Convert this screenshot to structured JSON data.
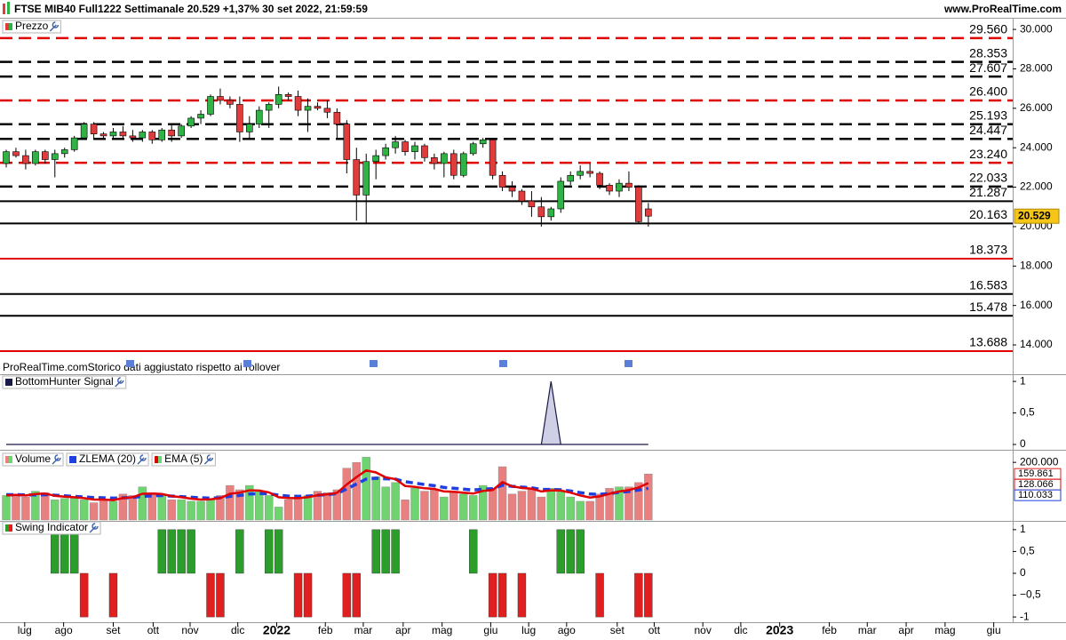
{
  "header": {
    "title": "FTSE MIB40 Full1222 Settimanale 20.529 +1,37% 30 set 2022, 21:59:59",
    "site": "www.ProRealTime.com"
  },
  "chart_data": [
    {
      "type": "candlestick",
      "title": "Prezzo",
      "note": "ProRealTime.com",
      "subtitle": "Storico dati aggiustato rispetto ai rollover",
      "up_color": "#2fb344",
      "down_color": "#e23b3b",
      "open": [
        23200,
        23800,
        23600,
        23200,
        23800,
        23400,
        23700,
        23900,
        24500,
        25200,
        24700,
        24600,
        24800,
        24600,
        24500,
        24800,
        24400,
        24900,
        24600,
        25100,
        25500,
        25700,
        26600,
        26400,
        26200,
        24800,
        25200,
        25900,
        26200,
        26700,
        26600,
        25900,
        26100,
        26000,
        25800,
        25200,
        23400,
        21600,
        23300,
        23600,
        24000,
        24300,
        23800,
        24100,
        23500,
        23200,
        23700,
        22600,
        23700,
        24200,
        24400,
        22600,
        22000,
        21800,
        21300,
        21000,
        20500,
        20900,
        22300,
        22600,
        22800,
        22700,
        22100,
        21800,
        22200,
        22000,
        20900
      ],
      "high": [
        23900,
        24000,
        23900,
        23900,
        23900,
        23900,
        24000,
        24600,
        25300,
        25300,
        24800,
        25000,
        25100,
        24900,
        24900,
        24900,
        25000,
        25200,
        25200,
        25600,
        25900,
        26700,
        27000,
        26600,
        26600,
        25600,
        26100,
        26300,
        27100,
        26800,
        26900,
        26500,
        26300,
        26400,
        26000,
        25400,
        24000,
        23700,
        23900,
        24200,
        24600,
        24400,
        24300,
        24200,
        23700,
        23800,
        23900,
        23800,
        24300,
        24500,
        24500,
        22800,
        22300,
        21900,
        21800,
        21500,
        21000,
        22500,
        22800,
        23100,
        23200,
        22800,
        22200,
        22400,
        22800,
        22100,
        21200
      ],
      "low": [
        23000,
        23500,
        22900,
        23100,
        23200,
        22500,
        23500,
        23800,
        24400,
        24500,
        24500,
        24400,
        24500,
        24300,
        24300,
        24200,
        24300,
        24300,
        24500,
        25000,
        25200,
        25600,
        26200,
        26000,
        24300,
        24500,
        25000,
        25000,
        26000,
        26400,
        25600,
        24800,
        25900,
        25500,
        24400,
        22700,
        20300,
        20200,
        22400,
        23400,
        23700,
        23600,
        23400,
        23300,
        22900,
        22500,
        22400,
        22500,
        23600,
        24000,
        22400,
        21800,
        21500,
        21100,
        20500,
        20000,
        20300,
        20700,
        22100,
        22400,
        22500,
        21900,
        21600,
        21500,
        21800,
        20200,
        20000
      ],
      "close": [
        23800,
        23600,
        23200,
        23800,
        23400,
        23700,
        23900,
        24500,
        25200,
        24700,
        24600,
        24800,
        24600,
        24500,
        24800,
        24400,
        24900,
        24600,
        25100,
        25500,
        25700,
        26600,
        26400,
        26200,
        24800,
        25200,
        25900,
        26200,
        26700,
        26600,
        25900,
        26100,
        26000,
        25800,
        25200,
        23400,
        21600,
        23300,
        23600,
        24000,
        24300,
        23800,
        24100,
        23500,
        23200,
        23700,
        22600,
        23700,
        24200,
        24400,
        22600,
        22000,
        21800,
        21300,
        21000,
        20500,
        20900,
        22300,
        22600,
        22800,
        22700,
        22100,
        21800,
        22200,
        22000,
        20250,
        20529
      ],
      "ylim": [
        12560,
        30500
      ],
      "yticks": [
        {
          "value": 30000,
          "label": "30.000"
        },
        {
          "value": 28000,
          "label": "28.000"
        },
        {
          "value": 26000,
          "label": "26.000"
        },
        {
          "value": 24000,
          "label": "24.000"
        },
        {
          "value": 22000,
          "label": "22.000"
        },
        {
          "value": 20000,
          "label": "20.000"
        },
        {
          "value": 18000,
          "label": "18.000"
        },
        {
          "value": 16000,
          "label": "16.000"
        },
        {
          "value": 14000,
          "label": "14.000"
        }
      ],
      "levels": [
        {
          "value": 29560,
          "label": "29.560",
          "color": "#e00000",
          "dashed": true
        },
        {
          "value": 28353,
          "label": "28.353",
          "color": "#000000",
          "dashed": true
        },
        {
          "value": 27607,
          "label": "27.607",
          "color": "#000000",
          "dashed": true
        },
        {
          "value": 26400,
          "label": "26.400",
          "color": "#e00000",
          "dashed": true
        },
        {
          "value": 25193,
          "label": "25.193",
          "color": "#000000",
          "dashed": true
        },
        {
          "value": 24447,
          "label": "24.447",
          "color": "#000000",
          "dashed": true
        },
        {
          "value": 23240,
          "label": "23.240",
          "color": "#e00000",
          "dashed": true
        },
        {
          "value": 22033,
          "label": "22.033",
          "color": "#000000",
          "dashed": true
        },
        {
          "value": 21287,
          "label": "21.287",
          "color": "#000000",
          "dashed": false
        },
        {
          "value": 20163,
          "label": "20.163",
          "color": "#000000",
          "dashed": false
        },
        {
          "value": 18373,
          "label": "18.373",
          "color": "#e00000",
          "dashed": false
        },
        {
          "value": 16583,
          "label": "16.583",
          "color": "#000000",
          "dashed": false
        },
        {
          "value": 15478,
          "label": "15.478",
          "color": "#000000",
          "dashed": false
        },
        {
          "value": 13688,
          "label": "13.688",
          "color": "#e00000",
          "dashed": false
        }
      ],
      "last": {
        "value": 20529,
        "label": "20.529",
        "color": "#f5c518"
      }
    },
    {
      "type": "area",
      "title": "BottomHunter Signal",
      "color": "#1a1a4a",
      "values": [
        0,
        0,
        0,
        0,
        0,
        0,
        0,
        0,
        0,
        0,
        0,
        0,
        0,
        0,
        0,
        0,
        0,
        0,
        0,
        0,
        0,
        0,
        0,
        0,
        0,
        0,
        0,
        0,
        0,
        0,
        0,
        0,
        0,
        0,
        0,
        0,
        0,
        0,
        0,
        0,
        0,
        0,
        0,
        0,
        0,
        0,
        0,
        0,
        0,
        0,
        0,
        0,
        0,
        0,
        0,
        0,
        1,
        0,
        0,
        0,
        0,
        0,
        0,
        0,
        0,
        0,
        0
      ],
      "ylim": [
        -0.07,
        1.1
      ],
      "yticks": [
        1,
        {
          "value": 0.5,
          "label": "0,5"
        },
        0
      ]
    },
    {
      "type": "volume",
      "up_color": "#6fd36f",
      "down_color": "#e98080",
      "series": [
        {
          "name": "Volume",
          "kind": "bar",
          "last_label": "159.861",
          "color": "#e02020",
          "values": [
            85000,
            90000,
            80000,
            100000,
            95000,
            70000,
            75000,
            75000,
            70000,
            60000,
            70000,
            65000,
            90000,
            85000,
            115000,
            95000,
            85000,
            70000,
            70000,
            65000,
            65000,
            75000,
            85000,
            120000,
            105000,
            120000,
            100000,
            85000,
            45000,
            70000,
            75000,
            85000,
            100000,
            95000,
            105000,
            180000,
            200000,
            218000,
            150000,
            115000,
            130000,
            70000,
            110000,
            100000,
            105000,
            80000,
            95000,
            90000,
            85000,
            120000,
            110000,
            185000,
            90000,
            100000,
            105000,
            80000,
            110000,
            100000,
            80000,
            65000,
            65000,
            90000,
            110000,
            115000,
            115000,
            130000,
            159861
          ]
        },
        {
          "name": "ZLEMA (20)",
          "kind": "line",
          "dashed": true,
          "last_label": "110.033",
          "color": "#1f3fe0",
          "values": [
            88000,
            88000,
            87000,
            87000,
            88000,
            86000,
            84000,
            82000,
            80000,
            78000,
            77000,
            76000,
            77000,
            78000,
            82000,
            84000,
            85000,
            83000,
            81000,
            79000,
            77000,
            76000,
            77000,
            82000,
            85000,
            90000,
            92000,
            91000,
            86000,
            83000,
            82000,
            83000,
            86000,
            88000,
            92000,
            108000,
            125000,
            142000,
            145000,
            143000,
            142000,
            133000,
            128000,
            123000,
            119000,
            113000,
            110000,
            107000,
            104000,
            107000,
            109000,
            121000,
            117000,
            114000,
            112000,
            106000,
            106000,
            105000,
            101000,
            95000,
            90000,
            89000,
            92000,
            96000,
            99000,
            104000,
            110033
          ]
        },
        {
          "name": "EMA (5)",
          "kind": "line",
          "dashed": false,
          "last_label": "128.066",
          "color": "#e00000",
          "values": [
            85000,
            87000,
            85000,
            90000,
            92000,
            84000,
            81000,
            79000,
            76000,
            71000,
            71000,
            69000,
            76000,
            79000,
            91000,
            92000,
            90000,
            83000,
            79000,
            74000,
            71000,
            72000,
            76000,
            91000,
            95000,
            103000,
            102000,
            96000,
            79000,
            76000,
            76000,
            79000,
            86000,
            89000,
            94000,
            123000,
            149000,
            172000,
            165000,
            148000,
            142000,
            118000,
            115000,
            110000,
            108000,
            99000,
            98000,
            95000,
            92000,
            101000,
            104000,
            131000,
            117000,
            111000,
            109000,
            99000,
            103000,
            102000,
            95000,
            85000,
            78000,
            82000,
            91000,
            99000,
            104000,
            113000,
            128066
          ]
        }
      ],
      "ylim": [
        0,
        240600
      ],
      "yticks": [
        {
          "value": 200000,
          "label": "200.000"
        }
      ]
    },
    {
      "type": "swing",
      "title": "Swing Indicator",
      "up_color": "#2a9d2a",
      "down_color": "#e02020",
      "values": [
        0,
        0,
        0,
        0,
        0,
        1,
        1,
        1,
        -1,
        0,
        0,
        -1,
        0,
        0,
        0,
        0,
        1,
        1,
        1,
        1,
        0,
        -1,
        -1,
        0,
        1,
        0,
        0,
        1,
        1,
        0,
        -1,
        -1,
        0,
        0,
        0,
        -1,
        -1,
        0,
        1,
        1,
        1,
        0,
        0,
        0,
        0,
        0,
        0,
        0,
        1,
        0,
        -1,
        -1,
        0,
        -1,
        0,
        0,
        0,
        1,
        1,
        1,
        0,
        -1,
        0,
        0,
        0,
        -1,
        -1
      ],
      "ylim": [
        -1.12,
        1.18
      ],
      "yticks": [
        1,
        {
          "value": 0.5,
          "label": "0,5"
        },
        0,
        {
          "value": -0.5,
          "label": "−0,5"
        },
        -1
      ],
      "xlim": [
        -0.64,
        103.45
      ],
      "xticks": [
        {
          "value": 1.9,
          "label": "lug"
        },
        {
          "value": 5.9,
          "label": "ago"
        },
        {
          "value": 11.0,
          "label": "set"
        },
        {
          "value": 15.1,
          "label": "ott"
        },
        {
          "value": 18.9,
          "label": "nov"
        },
        {
          "value": 23.8,
          "label": "dic"
        },
        {
          "value": 27.8,
          "label": "2022"
        },
        {
          "value": 32.8,
          "label": "feb"
        },
        {
          "value": 36.7,
          "label": "mar"
        },
        {
          "value": 40.8,
          "label": "apr"
        },
        {
          "value": 44.8,
          "label": "mag"
        },
        {
          "value": 49.8,
          "label": "giu"
        },
        {
          "value": 53.7,
          "label": "lug"
        },
        {
          "value": 57.6,
          "label": "ago"
        },
        {
          "value": 62.8,
          "label": "set"
        },
        {
          "value": 66.6,
          "label": "ott"
        },
        {
          "value": 71.6,
          "label": "nov"
        },
        {
          "value": 75.5,
          "label": "dic"
        },
        {
          "value": 79.5,
          "label": "2023"
        },
        {
          "value": 84.6,
          "label": "feb"
        },
        {
          "value": 88.5,
          "label": "mar"
        },
        {
          "value": 92.5,
          "label": "apr"
        },
        {
          "value": 96.5,
          "label": "mag"
        },
        {
          "value": 101.5,
          "label": "giu"
        }
      ]
    }
  ]
}
